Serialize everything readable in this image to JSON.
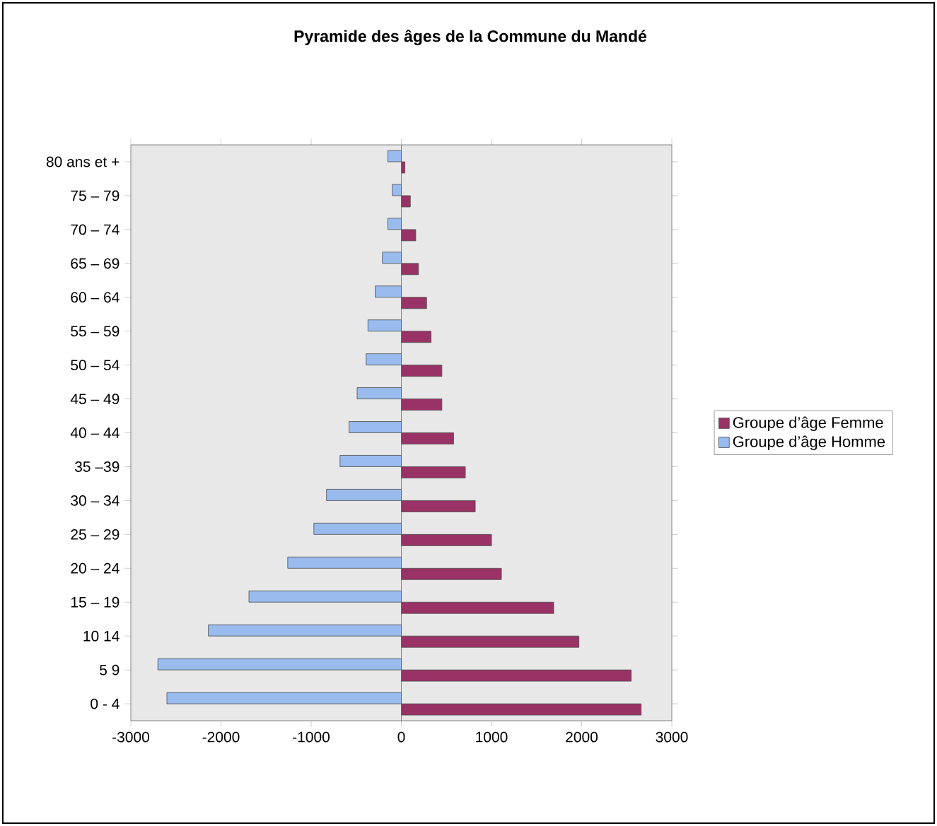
{
  "chart_data": {
    "type": "bar",
    "orientation": "horizontal",
    "title": "Pyramide des âges de la Commune du Mandé",
    "categories": [
      "80 ans et +",
      "75 – 79",
      "70 – 74",
      "65 – 69",
      "60 – 64",
      "55 – 59",
      "50 – 54",
      "45 – 49",
      "40 – 44",
      "35 –39",
      "30 – 34",
      "25 – 29",
      "20 – 24",
      "15 – 19",
      "10  14",
      "5  9",
      "0 -  4"
    ],
    "series": [
      {
        "name": "Groupe d’âge Femme",
        "color": "#993366",
        "values": [
          40,
          100,
          160,
          190,
          280,
          330,
          450,
          450,
          580,
          710,
          820,
          1000,
          1110,
          1690,
          1970,
          2550,
          2660
        ]
      },
      {
        "name": "Groupe d’âge Homme",
        "color": "#99bbee",
        "values": [
          -150,
          -100,
          -150,
          -210,
          -290,
          -370,
          -390,
          -490,
          -580,
          -680,
          -830,
          -970,
          -1260,
          -1690,
          -2140,
          -2700,
          -2600
        ]
      }
    ],
    "xlim": [
      -3000,
      3000
    ],
    "xticks": [
      -3000,
      -2000,
      -1000,
      0,
      1000,
      2000,
      3000
    ],
    "legend": "right"
  }
}
